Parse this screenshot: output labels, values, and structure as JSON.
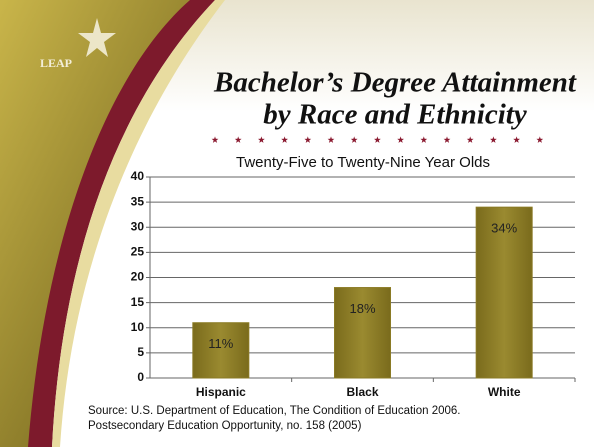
{
  "logo": "LEAP",
  "chart_data": {
    "type": "bar",
    "title": [
      "Bachelor’s Degree Attainment",
      "by Race and Ethnicity"
    ],
    "subtitle": "Twenty-Five to Twenty-Nine Year Olds",
    "categories": [
      "Hispanic",
      "Black",
      "White"
    ],
    "values": [
      11,
      18,
      34
    ],
    "value_labels": [
      "11%",
      "18%",
      "34%"
    ],
    "color": "#8a7a24",
    "ylim": [
      0,
      40
    ],
    "yticks": [
      0,
      5,
      10,
      15,
      20,
      25,
      30,
      35,
      40
    ],
    "grid": true
  },
  "source": [
    "Source: U.S. Department of Education, The Condition of Education 2006.",
    "Postsecondary Education Opportunity, no. 158 (2005)"
  ]
}
